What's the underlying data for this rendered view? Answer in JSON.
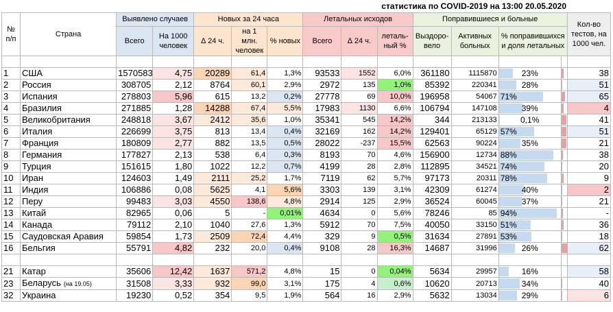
{
  "title": "статистика по COVID-2019 на 13:00 20.05.2020",
  "headers": {
    "num": "№ п/п",
    "country": "Страна",
    "detected": "Выявлено случаев",
    "new24": "Новых за 24 часа",
    "lethal": "Летальных исходов",
    "recovered_sick": "Поправившиеся и больные",
    "tests": "Кол-во тестов, на 1000 чел.",
    "total": "Всего",
    "per1000": "На 1000 человек",
    "delta24": "∆ 24 ч.",
    "per1m": "на 1 млн. человек",
    "pct_new": "% новых",
    "lethal_total": "Всего",
    "lethal_delta": "∆ 24 ч.",
    "lethal_pct": "леталь-ный %",
    "recovered": "Выздоро-вело",
    "active": "Активных больных",
    "pct_rec": "% поправившихся и доля летальных"
  },
  "rows_top": [
    {
      "n": "1",
      "country": "США",
      "note": "",
      "total": "1570583",
      "per1000": "4,75",
      "d24": "20289",
      "per1m": "61,4",
      "pct": "1,3%",
      "lt": "93533",
      "ld": "1552",
      "lp": "6,0%",
      "rec": "361180",
      "act": "1115870",
      "pr": "23%",
      "prv": 23,
      "lr": 6.0,
      "tests": "38"
    },
    {
      "n": "2",
      "country": "Россия",
      "note": "",
      "total": "308705",
      "per1000": "2,12",
      "d24": "8764",
      "per1m": "60,1",
      "pct": "2,9%",
      "lt": "2972",
      "ld": "135",
      "lp": "1,0%",
      "rec": "85392",
      "act": "220341",
      "pr": "28%",
      "prv": 28,
      "lr": 1.0,
      "tests": "51"
    },
    {
      "n": "3",
      "country": "Испания",
      "note": "",
      "total": "278803",
      "per1000": "5,96",
      "d24": "615",
      "per1m": "13,2",
      "pct": "0,2%",
      "lt": "27778",
      "ld": "69",
      "lp": "10,0%",
      "rec": "196958",
      "act": "54067",
      "pr": "71%",
      "prv": 71,
      "lr": 10.0,
      "tests": "65"
    },
    {
      "n": "4",
      "country": "Бразилия",
      "note": "",
      "total": "271885",
      "per1000": "1,28",
      "d24": "14288",
      "per1m": "67,4",
      "pct": "5,5%",
      "lt": "17983",
      "ld": "1130",
      "lp": "6,6%",
      "rec": "106794",
      "act": "147108",
      "pr": "39%",
      "prv": 39,
      "lr": 6.6,
      "tests": "4"
    },
    {
      "n": "5",
      "country": "Великобритания",
      "note": "",
      "total": "248818",
      "per1000": "3,67",
      "d24": "2412",
      "per1m": "35,6",
      "pct": "1,0%",
      "lt": "35341",
      "ld": "545",
      "lp": "14,2%",
      "rec": "344",
      "act": "213133",
      "pr": "0,1%",
      "prv": 0.1,
      "lr": 14.2,
      "tests": "41"
    },
    {
      "n": "6",
      "country": "Италия",
      "note": "",
      "total": "226699",
      "per1000": "3,75",
      "d24": "813",
      "per1m": "13,4",
      "pct": "0,4%",
      "lt": "32169",
      "ld": "162",
      "lp": "14,2%",
      "rec": "129401",
      "act": "65129",
      "pr": "57%",
      "prv": 57,
      "lr": 14.2,
      "tests": "51"
    },
    {
      "n": "7",
      "country": "Франция",
      "note": "",
      "total": "180809",
      "per1000": "2,77",
      "d24": "882",
      "per1m": "13,5",
      "pct": "0,5%",
      "lt": "28022",
      "ld": "-237",
      "lp": "15,5%",
      "rec": "62563",
      "act": "90224",
      "pr": "35%",
      "prv": 35,
      "lr": 15.5,
      "tests": "21"
    },
    {
      "n": "8",
      "country": "Германия",
      "note": "",
      "total": "177827",
      "per1000": "2,13",
      "d24": "538",
      "per1m": "6,4",
      "pct": "0,3%",
      "lt": "8193",
      "ld": "70",
      "lp": "4,6%",
      "rec": "156900",
      "act": "12734",
      "pr": "88%",
      "prv": 88,
      "lr": 4.6,
      "tests": "38"
    },
    {
      "n": "9",
      "country": "Турция",
      "note": "",
      "total": "151615",
      "per1000": "1,80",
      "d24": "1022",
      "per1m": "12,2",
      "pct": "0,7%",
      "lt": "4199",
      "ld": "28",
      "lp": "2,8%",
      "rec": "112895",
      "act": "34521",
      "pr": "74%",
      "prv": 74,
      "lr": 2.8,
      "tests": "20"
    },
    {
      "n": "10",
      "country": "Иран",
      "note": "",
      "total": "124603",
      "per1000": "1,49",
      "d24": "2111",
      "per1m": "25,2",
      "pct": "1,7%",
      "lt": "7119",
      "ld": "62",
      "lp": "5,7%",
      "rec": "97173",
      "act": "20311",
      "pr": "78%",
      "prv": 78,
      "lr": 5.7,
      "tests": "9"
    },
    {
      "n": "11",
      "country": "Индия",
      "note": "",
      "total": "106886",
      "per1000": "0,08",
      "d24": "5625",
      "per1m": "4,1",
      "pct": "5,6%",
      "lt": "3303",
      "ld": "139",
      "lp": "3,1%",
      "rec": "42309",
      "act": "61274",
      "pr": "40%",
      "prv": 40,
      "lr": 3.1,
      "tests": "2"
    },
    {
      "n": "12",
      "country": "Перу",
      "note": "",
      "total": "99483",
      "per1000": "3,03",
      "d24": "4550",
      "per1m": "138,6",
      "pct": "4,8%",
      "lt": "2914",
      "ld": "125",
      "lp": "2,9%",
      "rec": "36524",
      "act": "60045",
      "pr": "37%",
      "prv": 37,
      "lr": 2.9,
      "tests": "21"
    },
    {
      "n": "13",
      "country": "Китай",
      "note": "",
      "total": "82965",
      "per1000": "0,06",
      "d24": "5",
      "per1m": "-",
      "pct": "0,01%",
      "lt": "4634",
      "ld": "0",
      "lp": "5,6%",
      "rec": "78246",
      "act": "85",
      "pr": "94%",
      "prv": 94,
      "lr": 5.6,
      "tests": "-"
    },
    {
      "n": "14",
      "country": "Канада",
      "note": "",
      "total": "79112",
      "per1000": "2,10",
      "d24": "1040",
      "per1m": "27,6",
      "pct": "1,3%",
      "lt": "5912",
      "ld": "70",
      "lp": "7,5%",
      "rec": "40050",
      "act": "33150",
      "pr": "51%",
      "prv": 51,
      "lr": 7.5,
      "tests": "36"
    },
    {
      "n": "15",
      "country": "Саудовская Аравия",
      "note": "",
      "total": "59854",
      "per1000": "1,73",
      "d24": "2509",
      "per1m": "72,4",
      "pct": "4,4%",
      "lt": "329",
      "ld": "9",
      "lp": "0,5%",
      "rec": "31634",
      "act": "27891",
      "pr": "53%",
      "prv": 53,
      "lr": 0.5,
      "tests": "18"
    },
    {
      "n": "16",
      "country": "Бельгия",
      "note": "",
      "total": "55791",
      "per1000": "4,82",
      "d24": "232",
      "per1m": "20,0",
      "pct": "0,4%",
      "lt": "9108",
      "ld": "28",
      "lp": "16,3%",
      "rec": "14687",
      "act": "31996",
      "pr": "26%",
      "prv": 26,
      "lr": 16.3,
      "tests": "62"
    }
  ],
  "rows_bottom": [
    {
      "n": "21",
      "country": "Катар",
      "note": "",
      "total": "35606",
      "per1000": "12,42",
      "d24": "1637",
      "per1m": "571,2",
      "pct": "4,8%",
      "lt": "15",
      "ld": "0",
      "lp": "0,04%",
      "rec": "5634",
      "act": "29957",
      "pr": "16%",
      "prv": 16,
      "lr": 0.04,
      "tests": "58"
    },
    {
      "n": "23",
      "country": "Беларусь",
      "note": "(на 19.05)",
      "total": "31508",
      "per1000": "3,33",
      "d24": "932",
      "per1m": "99,0",
      "pct": "3,1%",
      "lt": "175",
      "ld": "4",
      "lp": "0,6%",
      "rec": "10620",
      "act": "20713",
      "pr": "34%",
      "prv": 34,
      "lr": 0.6,
      "tests": "40"
    },
    {
      "n": "32",
      "country": "Украина",
      "note": "",
      "total": "19230",
      "per1000": "0,52",
      "d24": "354",
      "per1m": "9,5",
      "pct": "1,9%",
      "lt": "564",
      "ld": "16",
      "lp": "2,9%",
      "rec": "5632",
      "act": "13034",
      "pr": "29%",
      "prv": 29,
      "lr": 2.9,
      "tests": "6"
    }
  ],
  "colors": {
    "per1000": {
      "1": "pk2",
      "3": "pk",
      "5": "pk2",
      "6": "pk2",
      "7": "pk2",
      "12": "pk2",
      "16": "pk",
      "21": "pk",
      "23": "pk2"
    },
    "d24": {
      "1": "or",
      "4": "or",
      "5": "or2",
      "10": "or2",
      "11": "or2",
      "12": "or2",
      "15": "or2",
      "21": "or2",
      "23": "or2"
    },
    "per1m": {
      "1": "or2",
      "2": "or2",
      "4": "or2",
      "5": "or2",
      "10": "or2",
      "12": "pk",
      "15": "or",
      "21": "pk",
      "23": "or"
    },
    "pct": {
      "3": "bl",
      "6": "bl",
      "7": "bl",
      "8": "bl",
      "9": "bl",
      "11": "or",
      "13": "gr",
      "16": "bl",
      "4": "or2",
      "12": "or2"
    },
    "ld": {
      "1": "pk2",
      "4": "pk2"
    },
    "lp": {
      "2": "gr",
      "3": "pk",
      "5": "pk",
      "6": "pk",
      "7": "pk",
      "16": "pk",
      "15": "gr",
      "21": "gr",
      "23": "gr2"
    },
    "tests": {
      "4": "pk",
      "11": "pk",
      "32": "pk2",
      "2": "bl2",
      "6": "bl2",
      "16": "bl2",
      "21": "bl2",
      "3": "bl2"
    }
  }
}
